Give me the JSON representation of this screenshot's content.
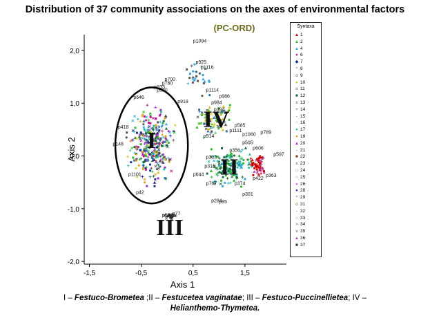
{
  "title": "Distribution of 37 community associations on the axes of environmental factors",
  "subtitle": "(PC-ORD)",
  "chart_data": {
    "type": "scatter",
    "xlabel": "Axis 1",
    "ylabel": "Axis 2",
    "xlim": [
      -1.6,
      2.3
    ],
    "ylim": [
      -2.05,
      2.3
    ],
    "x_ticks": [
      "-1,5",
      "-0,5",
      "0,5",
      "1,5"
    ],
    "x_tick_values": [
      -1.5,
      -0.5,
      0.5,
      1.5
    ],
    "y_ticks": [
      "2,0",
      "1,0",
      "0,0",
      "-1,0",
      "-2,0"
    ],
    "y_tick_values": [
      2.0,
      1.0,
      0.0,
      -1.0,
      -2.0
    ],
    "grid": false,
    "legend_title": "Syntaxa",
    "legend_position": "right",
    "legend": [
      {
        "label": "1",
        "symbol": "▲",
        "color": "#d00000"
      },
      {
        "label": "2",
        "symbol": "▲",
        "color": "#2db82d"
      },
      {
        "label": "4",
        "symbol": "▲",
        "color": "#3aa7d8"
      },
      {
        "label": "6",
        "symbol": "●",
        "color": "#c01890"
      },
      {
        "label": "7",
        "symbol": "◆",
        "color": "#1c2a8c"
      },
      {
        "label": "8",
        "symbol": "^",
        "color": "#555555"
      },
      {
        "label": "9",
        "symbol": "o",
        "color": "#555555"
      },
      {
        "label": "10",
        "symbol": "●",
        "color": "#d8c020"
      },
      {
        "label": "11",
        "symbol": "o",
        "color": "#555555"
      },
      {
        "label": "12",
        "symbol": "■",
        "color": "#1a6a3a"
      },
      {
        "label": "13",
        "symbol": "x",
        "color": "#555555"
      },
      {
        "label": "14",
        "symbol": "+",
        "color": "#555555"
      },
      {
        "label": "15",
        "symbol": "-",
        "color": "#555555"
      },
      {
        "label": "16",
        "symbol": "○",
        "color": "#888888"
      },
      {
        "label": "17",
        "symbol": "●",
        "color": "#30c0b0"
      },
      {
        "label": "19",
        "symbol": "●",
        "color": "#e0a020"
      },
      {
        "label": "20",
        "symbol": "▲",
        "color": "#a030c0"
      },
      {
        "label": "21",
        "symbol": "-",
        "color": "#555555"
      },
      {
        "label": "22",
        "symbol": "■",
        "color": "#7a4a2a"
      },
      {
        "label": "23",
        "symbol": "x",
        "color": "#555555"
      },
      {
        "label": "24",
        "symbol": "◇",
        "color": "#70a070"
      },
      {
        "label": "25",
        "symbol": "○",
        "color": "#3070a0"
      },
      {
        "label": "26",
        "symbol": "●",
        "color": "#d070d0"
      },
      {
        "label": "28",
        "symbol": "●",
        "color": "#4040c0"
      },
      {
        "label": "29",
        "symbol": "^",
        "color": "#555555"
      },
      {
        "label": "31",
        "symbol": "o",
        "color": "#a06020"
      },
      {
        "label": "32",
        "symbol": "-",
        "color": "#555555"
      },
      {
        "label": "33",
        "symbol": "○",
        "color": "#555555"
      },
      {
        "label": "34",
        "symbol": ">",
        "color": "#555555"
      },
      {
        "label": "35",
        "symbol": "v",
        "color": "#555555"
      },
      {
        "label": "36",
        "symbol": "▲",
        "color": "#b050b0"
      },
      {
        "label": "37",
        "symbol": "■",
        "color": "#333333"
      }
    ],
    "point_labels": [
      {
        "text": "p1094",
        "x": 0.5,
        "y": 2.15
      },
      {
        "text": "p925",
        "x": 0.55,
        "y": 1.75
      },
      {
        "text": "p1116",
        "x": 0.65,
        "y": 1.65
      },
      {
        "text": "p700",
        "x": -0.05,
        "y": 1.42
      },
      {
        "text": "p780",
        "x": -0.1,
        "y": 1.35
      },
      {
        "text": "p933",
        "x": -0.25,
        "y": 1.28
      },
      {
        "text": "p320",
        "x": -0.2,
        "y": 1.22
      },
      {
        "text": "p1114",
        "x": 0.75,
        "y": 1.22
      },
      {
        "text": "p986",
        "x": 1.0,
        "y": 1.1
      },
      {
        "text": "p646",
        "x": -0.65,
        "y": 1.08
      },
      {
        "text": "p918",
        "x": 0.2,
        "y": 1.0
      },
      {
        "text": "p984",
        "x": 0.85,
        "y": 0.98
      },
      {
        "text": "p394",
        "x": 0.9,
        "y": 0.85
      },
      {
        "text": "p1111",
        "x": 1.2,
        "y": 0.45
      },
      {
        "text": "p914",
        "x": 0.7,
        "y": 0.35
      },
      {
        "text": "p585",
        "x": 1.3,
        "y": 0.55
      },
      {
        "text": "p1060",
        "x": 1.45,
        "y": 0.38
      },
      {
        "text": "p789",
        "x": 1.8,
        "y": 0.42
      },
      {
        "text": "p418",
        "x": -0.95,
        "y": 0.52
      },
      {
        "text": "p148",
        "x": -1.05,
        "y": 0.2
      },
      {
        "text": "p356",
        "x": 1.2,
        "y": 0.08
      },
      {
        "text": "p505",
        "x": 1.45,
        "y": 0.22
      },
      {
        "text": "p606",
        "x": 1.65,
        "y": 0.12
      },
      {
        "text": "p597",
        "x": 2.05,
        "y": 0.0
      },
      {
        "text": "p303",
        "x": 0.75,
        "y": -0.05
      },
      {
        "text": "p318",
        "x": 0.72,
        "y": -0.22
      },
      {
        "text": "p644",
        "x": 0.5,
        "y": -0.38
      },
      {
        "text": "p767",
        "x": 0.75,
        "y": -0.55
      },
      {
        "text": "p374",
        "x": 1.3,
        "y": -0.55
      },
      {
        "text": "p422",
        "x": 1.65,
        "y": -0.45
      },
      {
        "text": "p363",
        "x": 1.9,
        "y": -0.4
      },
      {
        "text": "p301",
        "x": 1.45,
        "y": -0.75
      },
      {
        "text": "p284",
        "x": 0.85,
        "y": -0.88
      },
      {
        "text": "p95",
        "x": 1.0,
        "y": -0.9
      },
      {
        "text": "p1101",
        "x": -0.75,
        "y": -0.38
      },
      {
        "text": "p42",
        "x": -0.6,
        "y": -0.72
      },
      {
        "text": "p77",
        "x": 0.1,
        "y": -1.12
      },
      {
        "text": "p538",
        "x": -0.1,
        "y": -1.15
      }
    ],
    "regions": [
      {
        "label": "I",
        "x": -0.3,
        "y": 0.15
      },
      {
        "label": "II",
        "x": 1.2,
        "y": -0.35
      },
      {
        "label": "III",
        "x": 0.05,
        "y": -1.5
      },
      {
        "label": "IV",
        "x": 0.95,
        "y": 0.55
      }
    ],
    "ellipse": {
      "cx": -0.3,
      "cy": 0.2,
      "rx": 0.7,
      "ry": 1.1
    }
  },
  "caption": {
    "line1": [
      {
        "text": "I – ",
        "bold": false
      },
      {
        "text": "Festuco-Brometea",
        "bold": true
      },
      {
        "text": " ;II – ",
        "bold": false
      },
      {
        "text": "Festucetea vaginatae",
        "bold": true
      },
      {
        "text": "; III – ",
        "bold": false
      },
      {
        "text": "Festuco-Puccinellietea",
        "bold": true
      },
      {
        "text": "; IV –",
        "bold": false
      }
    ],
    "line2": [
      {
        "text": "Helianthemo-Thymetea.",
        "bold": true
      }
    ]
  }
}
